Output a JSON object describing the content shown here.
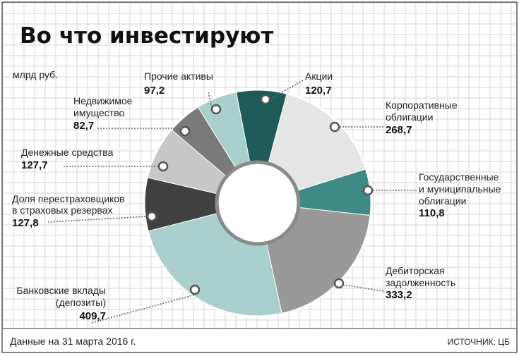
{
  "title": "Во что инвестируют",
  "unit": "млрд руб.",
  "footer": {
    "note": "Данные на 31 марта 2016 г.",
    "source": "ИСТОЧНИК: ЦБ"
  },
  "chart_data": {
    "type": "pie",
    "donut": true,
    "unit": "млрд руб.",
    "slices": [
      {
        "key": "stocks",
        "label": [
          "Акции"
        ],
        "value": 120.7,
        "display": "120,7",
        "color": "#1e5a57"
      },
      {
        "key": "corp-bonds",
        "label": [
          "Корпоративные",
          "облигации"
        ],
        "value": 268.7,
        "display": "268,7",
        "color": "#e6e6e6"
      },
      {
        "key": "gov-bonds",
        "label": [
          "Государственные",
          "и муниципальные",
          "облигации"
        ],
        "value": 110.8,
        "display": "110,8",
        "color": "#3f8a84"
      },
      {
        "key": "receivables",
        "label": [
          "Дебиторская",
          "задолженность"
        ],
        "value": 333.2,
        "display": "333,2",
        "color": "#999999"
      },
      {
        "key": "deposits",
        "label": [
          "Банковские вклады",
          "(депозиты)"
        ],
        "value": 409.7,
        "display": "409,7",
        "color": "#a9d0cc"
      },
      {
        "key": "reinsurer-share",
        "label": [
          "Доля перестраховщиков",
          "в страховых резервах"
        ],
        "value": 127.8,
        "display": "127,8",
        "color": "#404040"
      },
      {
        "key": "cash",
        "label": [
          "Денежные средства"
        ],
        "value": 127.7,
        "display": "127,7",
        "color": "#c8c8c8"
      },
      {
        "key": "real-estate",
        "label": [
          "Недвижимое",
          "имущество"
        ],
        "value": 82.7,
        "display": "82,7",
        "color": "#7a7a7a"
      },
      {
        "key": "other-assets",
        "label": [
          "Прочие активы"
        ],
        "value": 97.2,
        "display": "97,2",
        "color": "#a9d0cc"
      }
    ]
  }
}
